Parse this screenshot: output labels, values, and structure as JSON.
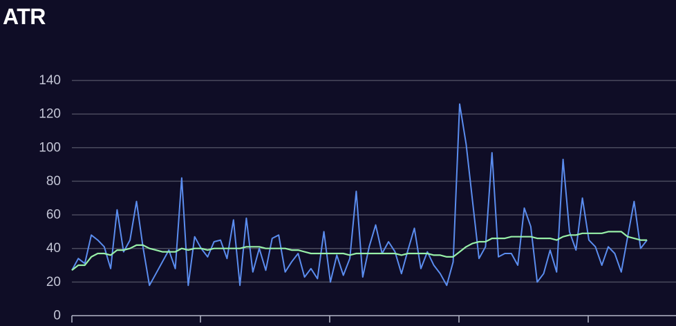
{
  "chart_data": {
    "type": "line",
    "title": "ATR",
    "xlabel": "",
    "ylabel": "",
    "ylim": [
      0,
      140
    ],
    "yticks": [
      0,
      20,
      40,
      60,
      80,
      100,
      120,
      140
    ],
    "grid": true,
    "colors": {
      "background": "#0f0d26",
      "grid": "#4a4a5e",
      "axis": "#b5b8c8",
      "tick_text": "#c4c6d6",
      "series": [
        "#5b8def",
        "#98f0a8"
      ]
    },
    "series": [
      {
        "values": [
          27,
          34,
          31,
          48,
          45,
          41,
          28,
          63,
          38,
          45,
          68,
          41,
          18,
          25,
          32,
          39,
          28,
          82,
          18,
          47,
          40,
          35,
          44,
          45,
          34,
          57,
          18,
          58,
          26,
          40,
          27,
          46,
          48,
          26,
          32,
          37,
          23,
          28,
          22,
          50,
          20,
          36,
          24,
          34,
          74,
          23,
          41,
          54,
          37,
          44,
          38,
          25,
          39,
          52,
          28,
          38,
          30,
          25,
          18,
          32,
          126,
          102,
          68,
          34,
          41,
          97,
          35,
          37,
          37,
          30,
          64,
          53,
          20,
          25,
          39,
          26,
          93,
          50,
          39,
          70,
          45,
          41,
          30,
          41,
          37,
          26,
          47,
          68,
          40,
          45
        ]
      },
      {
        "values": [
          27,
          30,
          30,
          35,
          37,
          37,
          36,
          39,
          39,
          40,
          42,
          42,
          40,
          39,
          38,
          38,
          38,
          40,
          39,
          40,
          40,
          39,
          40,
          40,
          40,
          40,
          40,
          41,
          41,
          41,
          40,
          40,
          40,
          40,
          39,
          39,
          38,
          37,
          37,
          37,
          37,
          37,
          37,
          36,
          37,
          37,
          37,
          37,
          37,
          37,
          37,
          36,
          37,
          37,
          37,
          37,
          36,
          36,
          35,
          35,
          38,
          41,
          43,
          44,
          44,
          46,
          46,
          46,
          47,
          47,
          47,
          47,
          46,
          46,
          46,
          45,
          47,
          48,
          48,
          49,
          49,
          49,
          49,
          50,
          50,
          50,
          47,
          46,
          45,
          45
        ]
      }
    ]
  }
}
